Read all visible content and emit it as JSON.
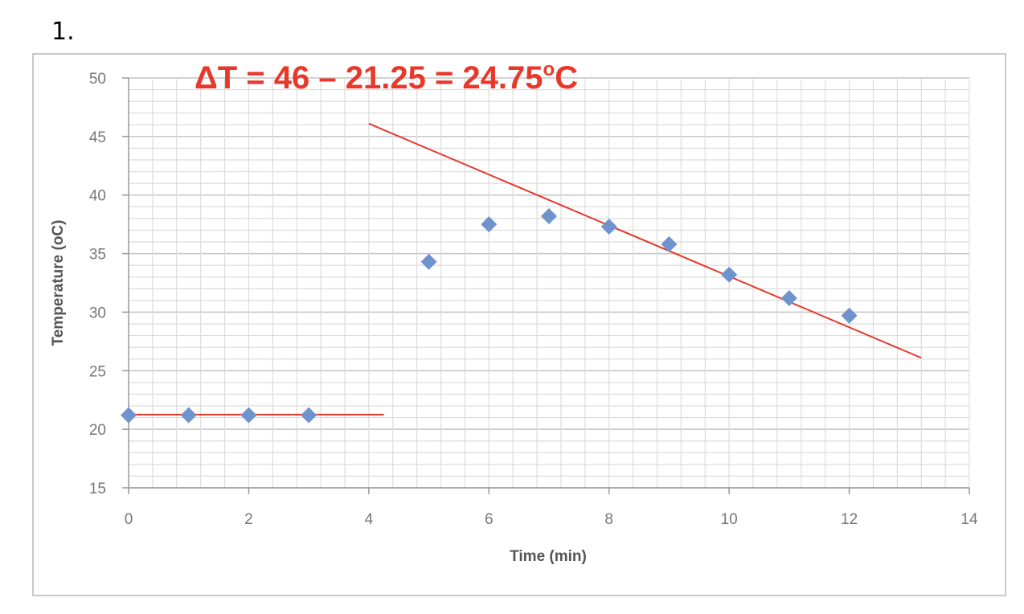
{
  "question_number": "1.",
  "chart_data": {
    "type": "scatter",
    "xlabel": "Time (min)",
    "ylabel": "Temperature (oC)",
    "xlim": [
      0,
      14
    ],
    "ylim": [
      15,
      50
    ],
    "xticks": [
      "0",
      "2",
      "4",
      "6",
      "8",
      "10",
      "12",
      "14"
    ],
    "yticks": [
      "15",
      "20",
      "25",
      "30",
      "35",
      "40",
      "45",
      "50"
    ],
    "grid": true,
    "marker_color": "#6f93cc",
    "points": [
      {
        "x": 0,
        "y": 21.2
      },
      {
        "x": 1,
        "y": 21.2
      },
      {
        "x": 2,
        "y": 21.2
      },
      {
        "x": 3,
        "y": 21.2
      },
      {
        "x": 5,
        "y": 34.3
      },
      {
        "x": 6,
        "y": 37.5
      },
      {
        "x": 7,
        "y": 38.2
      },
      {
        "x": 8,
        "y": 37.3
      },
      {
        "x": 9,
        "y": 35.8
      },
      {
        "x": 10,
        "y": 33.2
      },
      {
        "x": 11,
        "y": 31.2
      },
      {
        "x": 12,
        "y": 29.7
      }
    ],
    "annotation_lines": [
      {
        "color": "#e8382a",
        "from": {
          "x": -0.1,
          "y": 21.25
        },
        "to": {
          "x": 4.25,
          "y": 21.25
        }
      },
      {
        "color": "#e8382a",
        "from": {
          "x": 4,
          "y": 46.1
        },
        "to": {
          "x": 13.2,
          "y": 26.1
        }
      }
    ],
    "annotation_text": {
      "prefix": "ΔT  = 46 – 21.25 = 24.75",
      "superscript": "o",
      "suffix": "C",
      "color": "#e8382a"
    }
  }
}
